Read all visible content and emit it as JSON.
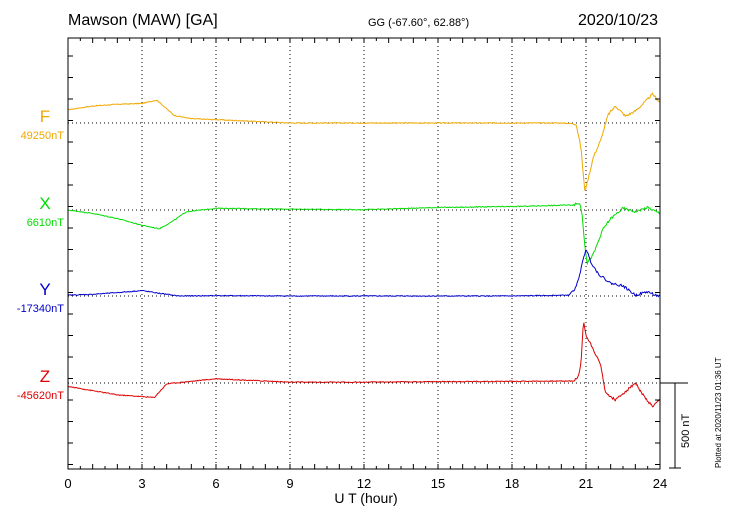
{
  "header": {
    "station": "Mawson (MAW)  [GA]",
    "coords": "GG (-67.60°,  62.88°)",
    "date": "2020/10/23"
  },
  "plot_note": "Plotted at 2020/11/23 01:36 UT",
  "scale_label": "500 nT",
  "chart_data": {
    "type": "line",
    "xlabel": "U T (hour)",
    "xlim": [
      0,
      24
    ],
    "xticks": [
      0,
      3,
      6,
      9,
      12,
      15,
      18,
      21,
      24
    ],
    "scale_bar_nT": 500,
    "grid": true,
    "series": [
      {
        "name": "F",
        "baseline_label": "49250nT",
        "baseline_nT": 49250,
        "color": "#f0a800",
        "points": [
          [
            0,
            49328
          ],
          [
            1,
            49350
          ],
          [
            2,
            49360
          ],
          [
            3,
            49365
          ],
          [
            3.6,
            49385
          ],
          [
            4.3,
            49295
          ],
          [
            5,
            49275
          ],
          [
            6,
            49270
          ],
          [
            9,
            49250
          ],
          [
            12,
            49250
          ],
          [
            15,
            49250
          ],
          [
            18,
            49250
          ],
          [
            20,
            49250
          ],
          [
            20.6,
            49245
          ],
          [
            20.8,
            49100
          ],
          [
            20.95,
            48850
          ],
          [
            21.05,
            48900
          ],
          [
            21.3,
            49050
          ],
          [
            21.6,
            49150
          ],
          [
            21.9,
            49300
          ],
          [
            22.2,
            49350
          ],
          [
            22.6,
            49290
          ],
          [
            23,
            49320
          ],
          [
            23.4,
            49375
          ],
          [
            23.7,
            49420
          ],
          [
            24,
            49370
          ]
        ]
      },
      {
        "name": "X",
        "baseline_label": "6610nT",
        "baseline_nT": 6610,
        "color": "#00dd00",
        "points": [
          [
            0,
            6610
          ],
          [
            1,
            6590
          ],
          [
            2,
            6560
          ],
          [
            3,
            6520
          ],
          [
            3.7,
            6500
          ],
          [
            4.2,
            6540
          ],
          [
            4.8,
            6600
          ],
          [
            6,
            6620
          ],
          [
            9,
            6615
          ],
          [
            12,
            6612
          ],
          [
            15,
            6625
          ],
          [
            18,
            6630
          ],
          [
            20.5,
            6640
          ],
          [
            20.75,
            6650
          ],
          [
            20.85,
            6580
          ],
          [
            20.95,
            6400
          ],
          [
            21.05,
            6300
          ],
          [
            21.3,
            6350
          ],
          [
            21.7,
            6500
          ],
          [
            22,
            6560
          ],
          [
            22.5,
            6620
          ],
          [
            23,
            6600
          ],
          [
            23.5,
            6625
          ],
          [
            24,
            6590
          ]
        ]
      },
      {
        "name": "Y",
        "baseline_label": "-17340nT",
        "baseline_nT": -17340,
        "color": "#0000cc",
        "points": [
          [
            0,
            -17335
          ],
          [
            1,
            -17330
          ],
          [
            2,
            -17320
          ],
          [
            3,
            -17308
          ],
          [
            3.6,
            -17322
          ],
          [
            4.5,
            -17340
          ],
          [
            6,
            -17338
          ],
          [
            9,
            -17340
          ],
          [
            12,
            -17340
          ],
          [
            15,
            -17340
          ],
          [
            18,
            -17340
          ],
          [
            20.3,
            -17335
          ],
          [
            20.6,
            -17290
          ],
          [
            20.8,
            -17180
          ],
          [
            21,
            -17060
          ],
          [
            21.2,
            -17140
          ],
          [
            21.5,
            -17210
          ],
          [
            22,
            -17265
          ],
          [
            22.5,
            -17280
          ],
          [
            23,
            -17335
          ],
          [
            23.5,
            -17315
          ],
          [
            24,
            -17345
          ]
        ]
      },
      {
        "name": "Z",
        "baseline_label": "-45620nT",
        "baseline_nT": -45620,
        "color": "#dd0000",
        "points": [
          [
            0,
            -45640
          ],
          [
            1,
            -45665
          ],
          [
            2,
            -45690
          ],
          [
            3.5,
            -45705
          ],
          [
            4,
            -45625
          ],
          [
            5,
            -45610
          ],
          [
            6,
            -45595
          ],
          [
            9,
            -45615
          ],
          [
            12,
            -45615
          ],
          [
            15,
            -45612
          ],
          [
            18,
            -45610
          ],
          [
            20.5,
            -45608
          ],
          [
            20.7,
            -45580
          ],
          [
            20.8,
            -45500
          ],
          [
            20.9,
            -45250
          ],
          [
            21,
            -45340
          ],
          [
            21.3,
            -45420
          ],
          [
            21.6,
            -45520
          ],
          [
            21.8,
            -45680
          ],
          [
            22.2,
            -45720
          ],
          [
            22.6,
            -45670
          ],
          [
            23,
            -45620
          ],
          [
            23.4,
            -45710
          ],
          [
            23.7,
            -45760
          ],
          [
            24,
            -45720
          ]
        ]
      }
    ]
  }
}
